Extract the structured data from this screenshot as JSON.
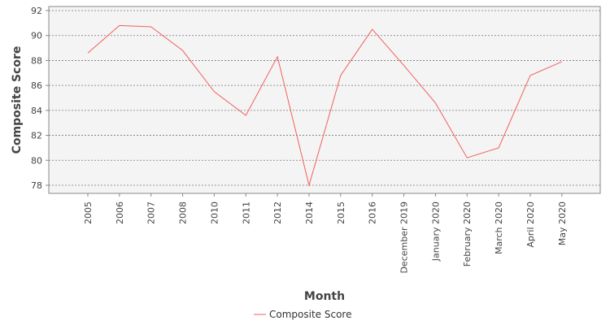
{
  "chart_data": {
    "type": "line",
    "categories": [
      "2005",
      "2006",
      "2007",
      "2008",
      "2010",
      "2011",
      "2012",
      "2014",
      "2015",
      "2016",
      "December 2019",
      "January 2020",
      "February 2020",
      "March 2020",
      "April 2020",
      "May 2020"
    ],
    "series": [
      {
        "name": "Composite Score",
        "color": "#f25f5c",
        "values": [
          88.6,
          90.8,
          90.7,
          88.8,
          85.5,
          83.6,
          88.3,
          78.0,
          86.8,
          90.5,
          87.6,
          84.6,
          80.2,
          81.0,
          86.8,
          87.9
        ]
      }
    ],
    "xlabel": "Month",
    "ylabel": "Composite Score",
    "ylim": [
      78,
      92
    ],
    "yticks": [
      78,
      80,
      82,
      84,
      86,
      88,
      90,
      92
    ],
    "grid": true,
    "legend": "bottom-center",
    "colors": {
      "plot_background": "#f4f4f4",
      "gridline": "#777777",
      "axis": "#888888"
    }
  }
}
